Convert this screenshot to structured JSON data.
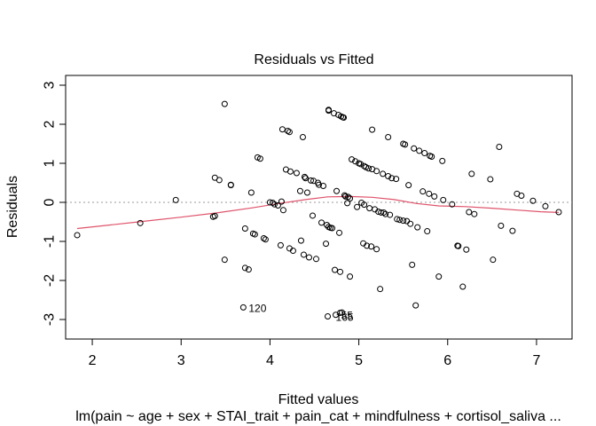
{
  "chart_data": {
    "type": "scatter",
    "title": "Residuals vs Fitted",
    "xlabel": "Fitted values",
    "ylabel": "Residuals",
    "subtitle": "lm(pain ~ age + sex + STAI_trait + pain_cat + mindfulness + cortisol_saliva ...",
    "xlim": [
      1.7,
      7.4
    ],
    "ylim": [
      -3.5,
      3.25
    ],
    "x_ticks": [
      2,
      3,
      4,
      5,
      6,
      7
    ],
    "y_ticks": [
      -3,
      -2,
      -1,
      0,
      1,
      2,
      3
    ],
    "grid": false,
    "reference_line": {
      "y": 0,
      "style": "dotted",
      "color": "#9a9a9a"
    },
    "smooth_color": "#DF536B",
    "points": [
      [
        1.83,
        -0.84
      ],
      [
        2.54,
        -0.53
      ],
      [
        2.94,
        0.06
      ],
      [
        3.38,
        0.63
      ],
      [
        3.43,
        0.57
      ],
      [
        3.36,
        -0.37
      ],
      [
        3.38,
        -0.35
      ],
      [
        3.49,
        2.52
      ],
      [
        3.49,
        -1.47
      ],
      [
        3.56,
        0.44
      ],
      [
        3.56,
        0.45
      ],
      [
        3.72,
        -0.67
      ],
      [
        3.72,
        -1.68
      ],
      [
        3.76,
        -1.72
      ],
      [
        3.79,
        0.25
      ],
      [
        3.81,
        -0.8
      ],
      [
        3.83,
        -0.82
      ],
      [
        3.86,
        1.15
      ],
      [
        3.89,
        1.12
      ],
      [
        3.93,
        -0.92
      ],
      [
        3.95,
        -0.95
      ],
      [
        4.0,
        0.0
      ],
      [
        4.03,
        -0.01
      ],
      [
        4.05,
        -0.05
      ],
      [
        4.09,
        -0.08
      ],
      [
        4.12,
        -1.1
      ],
      [
        4.13,
        0.02
      ],
      [
        4.14,
        1.87
      ],
      [
        4.15,
        -0.2
      ],
      [
        4.18,
        0.84
      ],
      [
        4.2,
        1.83
      ],
      [
        4.22,
        1.8
      ],
      [
        4.22,
        -1.18
      ],
      [
        4.23,
        0.79
      ],
      [
        4.26,
        -1.24
      ],
      [
        4.3,
        0.75
      ],
      [
        4.34,
        0.29
      ],
      [
        4.35,
        -0.98
      ],
      [
        4.37,
        1.67
      ],
      [
        4.38,
        -1.34
      ],
      [
        4.39,
        0.65
      ],
      [
        4.4,
        0.62
      ],
      [
        4.42,
        0.25
      ],
      [
        4.44,
        -1.41
      ],
      [
        4.46,
        0.56
      ],
      [
        4.48,
        -0.34
      ],
      [
        4.49,
        0.55
      ],
      [
        4.52,
        -1.45
      ],
      [
        4.54,
        0.5
      ],
      [
        4.55,
        0.45
      ],
      [
        4.58,
        -0.52
      ],
      [
        4.6,
        0.42
      ],
      [
        4.63,
        -1.06
      ],
      [
        4.64,
        -0.58
      ],
      [
        4.66,
        2.37
      ],
      [
        4.66,
        2.35
      ],
      [
        4.66,
        -0.63
      ],
      [
        4.68,
        -0.65
      ],
      [
        4.7,
        -0.66
      ],
      [
        4.72,
        2.28
      ],
      [
        4.73,
        -1.73
      ],
      [
        4.75,
        0.29
      ],
      [
        4.77,
        2.24
      ],
      [
        4.78,
        -0.78
      ],
      [
        4.79,
        -1.78
      ],
      [
        4.8,
        2.2
      ],
      [
        4.82,
        2.18
      ],
      [
        4.83,
        2.17
      ],
      [
        4.84,
        0.18
      ],
      [
        4.85,
        0.15
      ],
      [
        4.87,
        -0.02
      ],
      [
        4.88,
        0.14
      ],
      [
        4.9,
        0.1
      ],
      [
        4.9,
        -1.9
      ],
      [
        4.92,
        1.1
      ],
      [
        4.96,
        1.05
      ],
      [
        4.98,
        -0.12
      ],
      [
        5.0,
        1.0
      ],
      [
        5.02,
        0.98
      ],
      [
        5.03,
        -0.01
      ],
      [
        5.05,
        -1.05
      ],
      [
        5.06,
        0.93
      ],
      [
        5.06,
        -0.06
      ],
      [
        5.08,
        0.9
      ],
      [
        5.09,
        -1.11
      ],
      [
        5.11,
        0.87
      ],
      [
        5.12,
        -0.15
      ],
      [
        5.14,
        -1.13
      ],
      [
        5.15,
        0.85
      ],
      [
        5.15,
        1.86
      ],
      [
        5.18,
        -0.18
      ],
      [
        5.2,
        -1.2
      ],
      [
        5.2,
        0.8
      ],
      [
        5.22,
        -0.24
      ],
      [
        5.24,
        -2.22
      ],
      [
        5.25,
        -0.26
      ],
      [
        5.27,
        0.73
      ],
      [
        5.28,
        -0.26
      ],
      [
        5.3,
        -0.3
      ],
      [
        5.33,
        1.67
      ],
      [
        5.33,
        0.67
      ],
      [
        5.35,
        -0.32
      ],
      [
        5.37,
        0.62
      ],
      [
        5.42,
        0.6
      ],
      [
        5.43,
        -0.43
      ],
      [
        5.46,
        -0.45
      ],
      [
        5.5,
        -0.47
      ],
      [
        5.5,
        1.5
      ],
      [
        5.52,
        1.48
      ],
      [
        5.54,
        -0.48
      ],
      [
        5.56,
        0.44
      ],
      [
        5.58,
        -0.55
      ],
      [
        5.6,
        -1.6
      ],
      [
        5.62,
        1.38
      ],
      [
        5.64,
        -2.64
      ],
      [
        5.66,
        -0.64
      ],
      [
        5.68,
        1.32
      ],
      [
        5.72,
        0.28
      ],
      [
        5.74,
        1.26
      ],
      [
        5.77,
        -0.74
      ],
      [
        5.79,
        0.22
      ],
      [
        5.8,
        1.19
      ],
      [
        5.82,
        1.17
      ],
      [
        5.85,
        0.15
      ],
      [
        5.9,
        -1.9
      ],
      [
        5.94,
        1.06
      ],
      [
        5.95,
        0.06
      ],
      [
        6.05,
        -0.05
      ],
      [
        6.11,
        -1.11
      ],
      [
        6.12,
        -1.12
      ],
      [
        6.17,
        -2.16
      ],
      [
        6.21,
        -1.21
      ],
      [
        6.24,
        -0.25
      ],
      [
        6.27,
        0.73
      ],
      [
        6.3,
        -0.3
      ],
      [
        6.48,
        0.59
      ],
      [
        6.51,
        -1.47
      ],
      [
        6.58,
        1.42
      ],
      [
        6.6,
        -0.6
      ],
      [
        6.73,
        -0.73
      ],
      [
        6.78,
        0.22
      ],
      [
        6.83,
        0.17
      ],
      [
        6.96,
        0.04
      ],
      [
        7.1,
        -0.1
      ],
      [
        7.25,
        -0.25
      ],
      [
        3.7,
        -2.69
      ],
      [
        4.65,
        -2.92
      ],
      [
        4.74,
        -2.88
      ],
      [
        4.79,
        -2.83
      ],
      [
        4.81,
        -2.82
      ]
    ],
    "labeled_points": [
      {
        "label": "120",
        "x": 3.7,
        "y": -2.69
      },
      {
        "label": "165",
        "x": 4.68,
        "y": -2.92
      },
      {
        "label": "55",
        "x": 4.74,
        "y": -2.88
      }
    ],
    "smooth": [
      [
        1.83,
        -0.67
      ],
      [
        2.2,
        -0.58
      ],
      [
        2.6,
        -0.48
      ],
      [
        3.0,
        -0.38
      ],
      [
        3.4,
        -0.27
      ],
      [
        3.8,
        -0.14
      ],
      [
        4.1,
        -0.03
      ],
      [
        4.4,
        0.07
      ],
      [
        4.65,
        0.14
      ],
      [
        4.9,
        0.15
      ],
      [
        5.15,
        0.13
      ],
      [
        5.4,
        0.07
      ],
      [
        5.65,
        -0.03
      ],
      [
        5.9,
        -0.09
      ],
      [
        6.2,
        -0.11
      ],
      [
        6.5,
        -0.15
      ],
      [
        6.8,
        -0.2
      ],
      [
        7.05,
        -0.24
      ],
      [
        7.25,
        -0.26
      ]
    ]
  }
}
